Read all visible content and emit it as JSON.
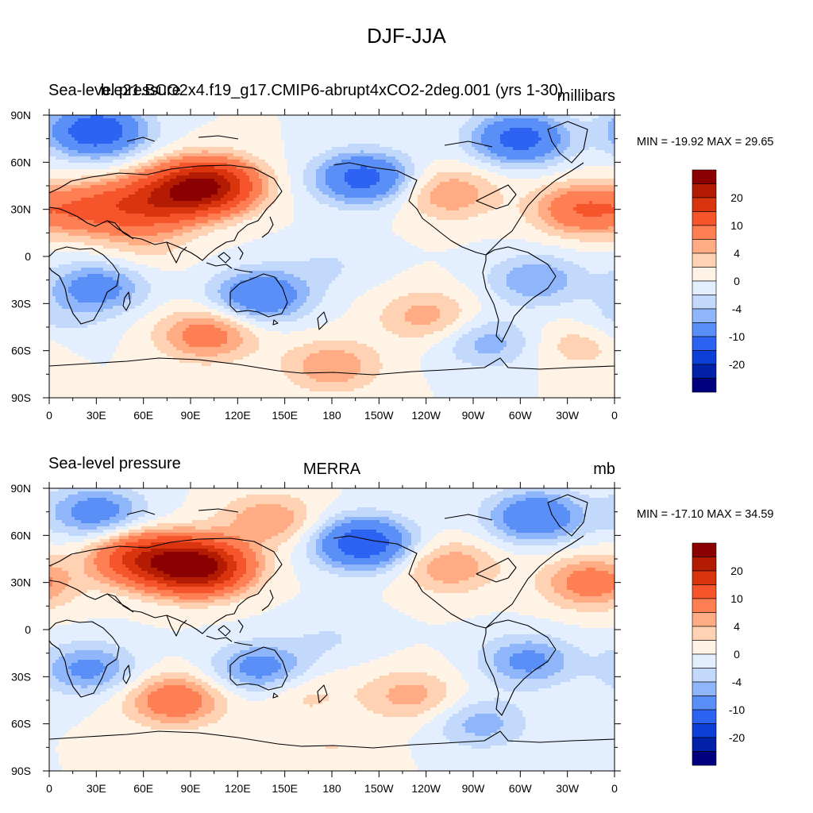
{
  "figure": {
    "title": "DJF-JJA"
  },
  "panels": [
    {
      "left_title": "Sea-level pressure",
      "center_title": "b.e21.BCO2x4.f19_g17.CMIP6-abrupt4xCO2-2deg.001 (yrs 1-30)",
      "right_title": "millibars",
      "stats": "MIN = -19.92 MAX =  29.65"
    },
    {
      "left_title": "Sea-level pressure",
      "center_title": "MERRA",
      "right_title": "mb",
      "stats": "MIN = -17.10 MAX =  34.59"
    }
  ],
  "colors": {
    "levels": [
      "#00007f",
      "#0021a8",
      "#0b3fd6",
      "#2d63f2",
      "#5a8ff8",
      "#8fb5fb",
      "#c3d9fc",
      "#e3eefe",
      "#fff3e6",
      "#ffd2b4",
      "#ffab84",
      "#ff7f54",
      "#f6542a",
      "#d9340e",
      "#b31b02",
      "#8b0000"
    ],
    "land_line": "#000000"
  },
  "chart_data": [
    {
      "type": "heatmap",
      "title": "DJF-JJA",
      "subtitle": "b.e21.BCO2x4.f19_g17.CMIP6-abrupt4xCO2-2deg.001 (yrs 1-30)",
      "variable": "Sea-level pressure",
      "units": "millibars",
      "min": -19.92,
      "max": 29.65,
      "x_tick_labels": [
        "0",
        "30E",
        "60E",
        "90E",
        "120E",
        "150E",
        "180",
        "150W",
        "120W",
        "90W",
        "60W",
        "30W",
        "0"
      ],
      "y_tick_labels": [
        "90N",
        "60N",
        "30N",
        "0",
        "30S",
        "60S",
        "90S"
      ],
      "colorbar_labels": [
        "20",
        "10",
        "4",
        "0",
        "-4",
        "-10",
        "-20"
      ],
      "features": [
        {
          "lon": 100,
          "lat": 45,
          "value": 25
        },
        {
          "lon": 70,
          "lat": 35,
          "value": 14
        },
        {
          "lon": 30,
          "lat": 30,
          "value": 10
        },
        {
          "lon": 60,
          "lat": 10,
          "value": 3
        },
        {
          "lon": 200,
          "lat": 50,
          "value": -12
        },
        {
          "lon": 300,
          "lat": 75,
          "value": -12
        },
        {
          "lon": 30,
          "lat": 80,
          "value": -14
        },
        {
          "lon": 340,
          "lat": 30,
          "value": 10
        },
        {
          "lon": 255,
          "lat": 40,
          "value": 6
        },
        {
          "lon": 135,
          "lat": -25,
          "value": -10
        },
        {
          "lon": 30,
          "lat": -20,
          "value": -8
        },
        {
          "lon": 180,
          "lat": -5,
          "value": -2
        },
        {
          "lon": 310,
          "lat": -15,
          "value": -6
        },
        {
          "lon": 100,
          "lat": -50,
          "value": 8
        },
        {
          "lon": 240,
          "lat": -38,
          "value": 5
        },
        {
          "lon": 180,
          "lat": -70,
          "value": 6
        },
        {
          "lon": 280,
          "lat": -55,
          "value": -5
        },
        {
          "lon": 0,
          "lat": -45,
          "value": -3
        },
        {
          "lon": 340,
          "lat": -55,
          "value": 4
        }
      ]
    },
    {
      "type": "heatmap",
      "title": "DJF-JJA",
      "subtitle": "MERRA",
      "variable": "Sea-level pressure",
      "units": "mb",
      "min": -17.1,
      "max": 34.59,
      "x_tick_labels": [
        "0",
        "30E",
        "60E",
        "90E",
        "120E",
        "150E",
        "180",
        "150W",
        "120W",
        "90W",
        "60W",
        "30W",
        "0"
      ],
      "y_tick_labels": [
        "90N",
        "60N",
        "30N",
        "0",
        "30S",
        "60S",
        "90S"
      ],
      "colorbar_labels": [
        "20",
        "10",
        "4",
        "0",
        "-4",
        "-10",
        "-20"
      ],
      "features": [
        {
          "lon": 95,
          "lat": 40,
          "value": 28
        },
        {
          "lon": 60,
          "lat": 45,
          "value": 16
        },
        {
          "lon": 140,
          "lat": 70,
          "value": 6
        },
        {
          "lon": 200,
          "lat": 55,
          "value": -14
        },
        {
          "lon": 310,
          "lat": 72,
          "value": -10
        },
        {
          "lon": 30,
          "lat": 75,
          "value": -8
        },
        {
          "lon": 345,
          "lat": 30,
          "value": 8
        },
        {
          "lon": 255,
          "lat": 40,
          "value": 6
        },
        {
          "lon": 135,
          "lat": -25,
          "value": -8
        },
        {
          "lon": 25,
          "lat": -25,
          "value": -7
        },
        {
          "lon": 180,
          "lat": -5,
          "value": -2
        },
        {
          "lon": 305,
          "lat": -20,
          "value": -7
        },
        {
          "lon": 80,
          "lat": -45,
          "value": 9
        },
        {
          "lon": 230,
          "lat": -42,
          "value": 5
        },
        {
          "lon": 275,
          "lat": -60,
          "value": -5
        },
        {
          "lon": 160,
          "lat": -40,
          "value": 3
        },
        {
          "lon": 180,
          "lat": -75,
          "value": 2
        }
      ]
    }
  ]
}
